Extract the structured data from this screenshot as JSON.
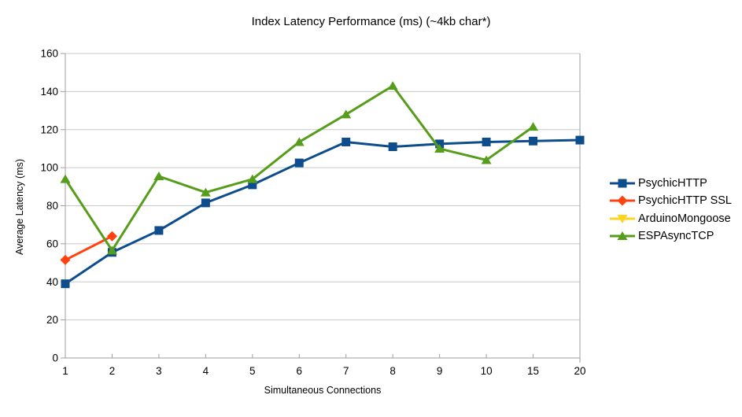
{
  "title": "Index Latency Performance (ms) (~4kb char*)",
  "chart_data": {
    "type": "line",
    "title": "Index Latency Performance (ms) (~4kb char*)",
    "xlabel": "Simultaneous Connections",
    "ylabel": "Average Latency (ms)",
    "categories": [
      "1",
      "2",
      "3",
      "4",
      "5",
      "6",
      "7",
      "8",
      "9",
      "10",
      "15",
      "20"
    ],
    "ylim": [
      0,
      160
    ],
    "y_ticks": [
      0,
      20,
      40,
      60,
      80,
      100,
      120,
      140,
      160
    ],
    "grid": "horizontal",
    "legend_position": "right",
    "grid_color": "#c8c8c8",
    "axis_color": "#9f9f9f",
    "text_color": "#000000",
    "background_color": "#ffffff",
    "series": [
      {
        "name": "PsychicHTTP",
        "color": "#0d4d8c",
        "marker": "square",
        "values": [
          39,
          55.5,
          67,
          81.5,
          91,
          102.5,
          113.5,
          111,
          112.5,
          113.5,
          114,
          114.5
        ]
      },
      {
        "name": "PsychicHTTP SSL",
        "color": "#ff420e",
        "marker": "diamond",
        "values": [
          51.5,
          64,
          null,
          null,
          null,
          null,
          null,
          null,
          null,
          null,
          null,
          null
        ]
      },
      {
        "name": "ArduinoMongoose",
        "color": "#ffd320",
        "marker": "triangle-down",
        "values": [
          null,
          null,
          null,
          null,
          null,
          null,
          null,
          null,
          null,
          null,
          null,
          null
        ]
      },
      {
        "name": "ESPAsyncTCP",
        "color": "#579d1c",
        "marker": "triangle-up",
        "values": [
          94,
          56.5,
          95.5,
          87,
          94,
          113.5,
          128,
          143,
          110,
          104,
          121.5,
          null
        ]
      }
    ]
  }
}
